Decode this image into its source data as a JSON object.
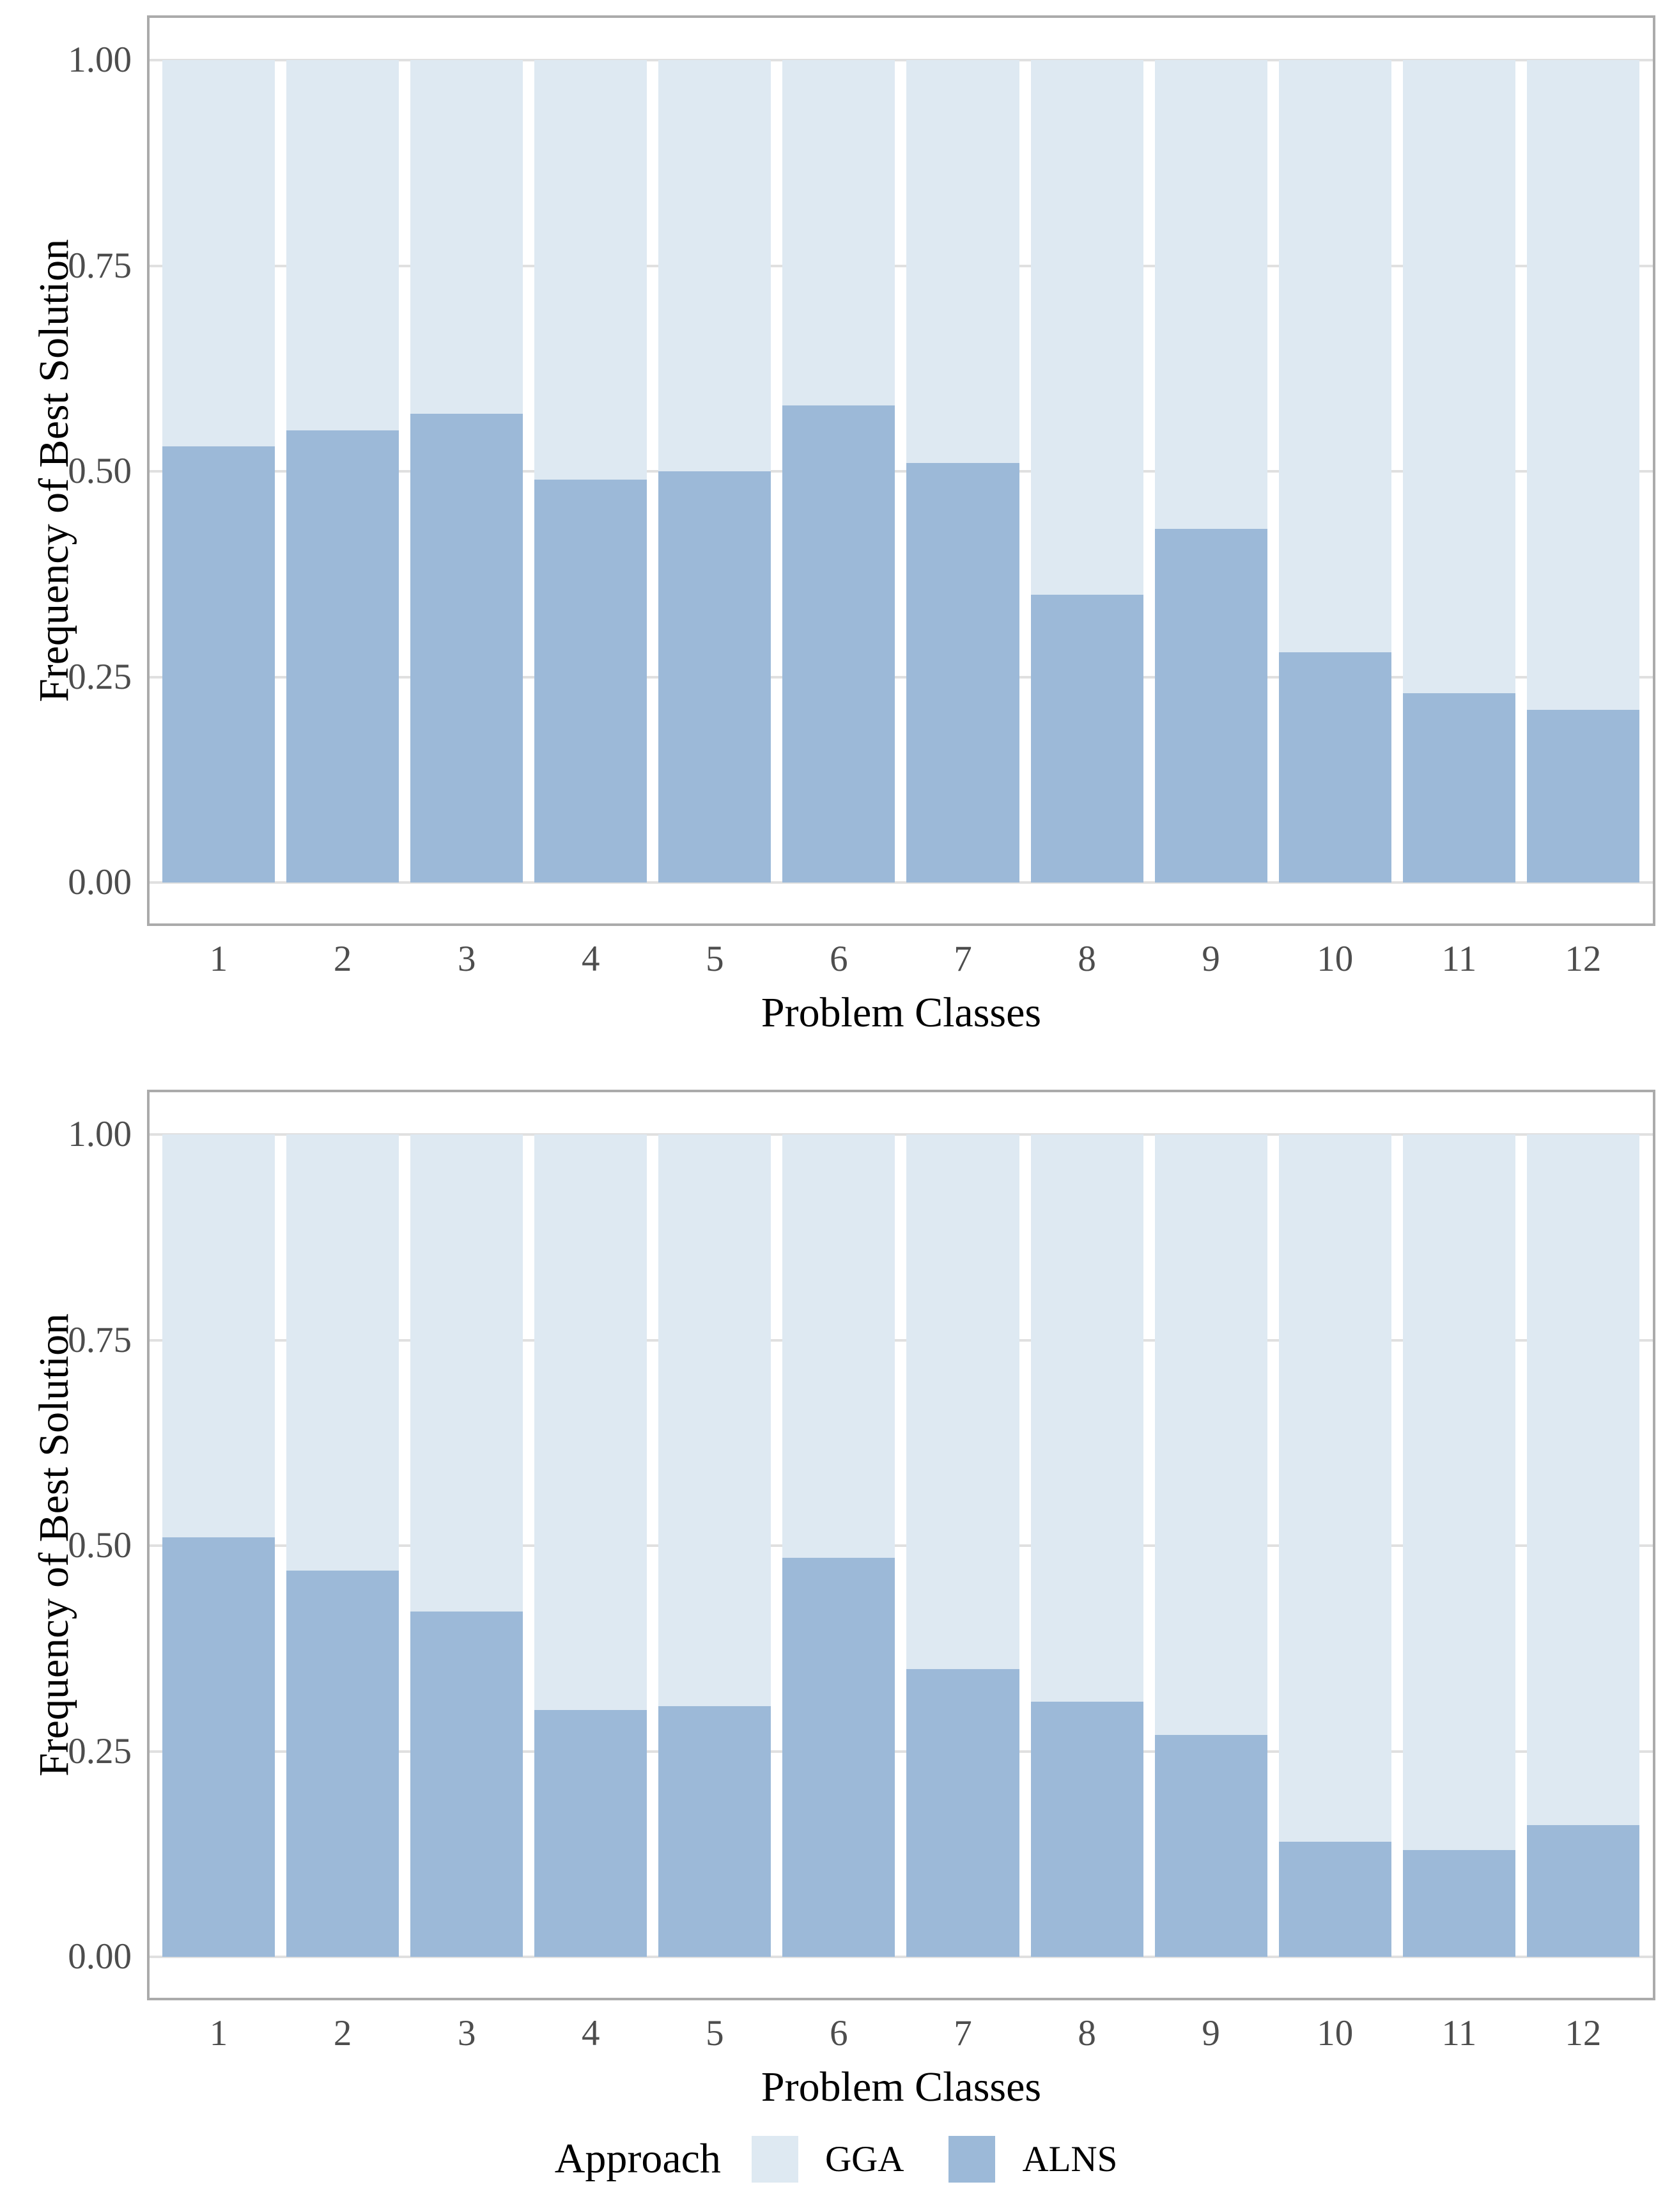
{
  "legend": {
    "title": "Approach",
    "items": [
      {
        "label": "GGA",
        "color": "#DEE9F2"
      },
      {
        "label": "ALNS",
        "color": "#9CB9D8"
      }
    ]
  },
  "colors": {
    "gga": "#DEE9F2",
    "alns": "#9CB9D8",
    "gridline": "#E0E0E0",
    "panel_border": "#ABABAB",
    "tick_text": "#4D4D4D",
    "title_text": "#000000"
  },
  "chart_data": [
    {
      "type": "bar",
      "stacked": true,
      "title": "",
      "xlabel": "Problem Classes",
      "ylabel": "Frequency of Best Solution",
      "categories": [
        "1",
        "2",
        "3",
        "4",
        "5",
        "6",
        "7",
        "8",
        "9",
        "10",
        "11",
        "12"
      ],
      "ylim": [
        0,
        1
      ],
      "grid": true,
      "legend_position": "bottom-shared",
      "yticks": [
        {
          "label": "1.00",
          "value": 1.0
        },
        {
          "label": "0.75",
          "value": 0.75
        },
        {
          "label": "0.50",
          "value": 0.5
        },
        {
          "label": "0.25",
          "value": 0.25
        },
        {
          "label": "0.00",
          "value": 0.0
        }
      ],
      "series": [
        {
          "name": "ALNS",
          "color": "#9CB9D8",
          "values": [
            0.53,
            0.55,
            0.57,
            0.49,
            0.5,
            0.58,
            0.51,
            0.35,
            0.43,
            0.28,
            0.23,
            0.21
          ]
        },
        {
          "name": "GGA",
          "color": "#DEE9F2",
          "values": [
            0.47,
            0.45,
            0.43,
            0.51,
            0.5,
            0.42,
            0.49,
            0.65,
            0.57,
            0.72,
            0.77,
            0.79
          ]
        }
      ]
    },
    {
      "type": "bar",
      "stacked": true,
      "title": "",
      "xlabel": "Problem Classes",
      "ylabel": "Frequency of Best Solution",
      "categories": [
        "1",
        "2",
        "3",
        "4",
        "5",
        "6",
        "7",
        "8",
        "9",
        "10",
        "11",
        "12"
      ],
      "ylim": [
        0,
        1
      ],
      "grid": true,
      "legend_position": "bottom-shared",
      "yticks": [
        {
          "label": "1.00",
          "value": 1.0
        },
        {
          "label": "0.75",
          "value": 0.75
        },
        {
          "label": "0.50",
          "value": 0.5
        },
        {
          "label": "0.25",
          "value": 0.25
        },
        {
          "label": "0.00",
          "value": 0.0
        }
      ],
      "series": [
        {
          "name": "ALNS",
          "color": "#9CB9D8",
          "values": [
            0.51,
            0.47,
            0.42,
            0.3,
            0.305,
            0.485,
            0.35,
            0.31,
            0.27,
            0.14,
            0.13,
            0.16
          ]
        },
        {
          "name": "GGA",
          "color": "#DEE9F2",
          "values": [
            0.49,
            0.53,
            0.58,
            0.7,
            0.695,
            0.515,
            0.65,
            0.69,
            0.73,
            0.86,
            0.87,
            0.84
          ]
        }
      ]
    }
  ]
}
